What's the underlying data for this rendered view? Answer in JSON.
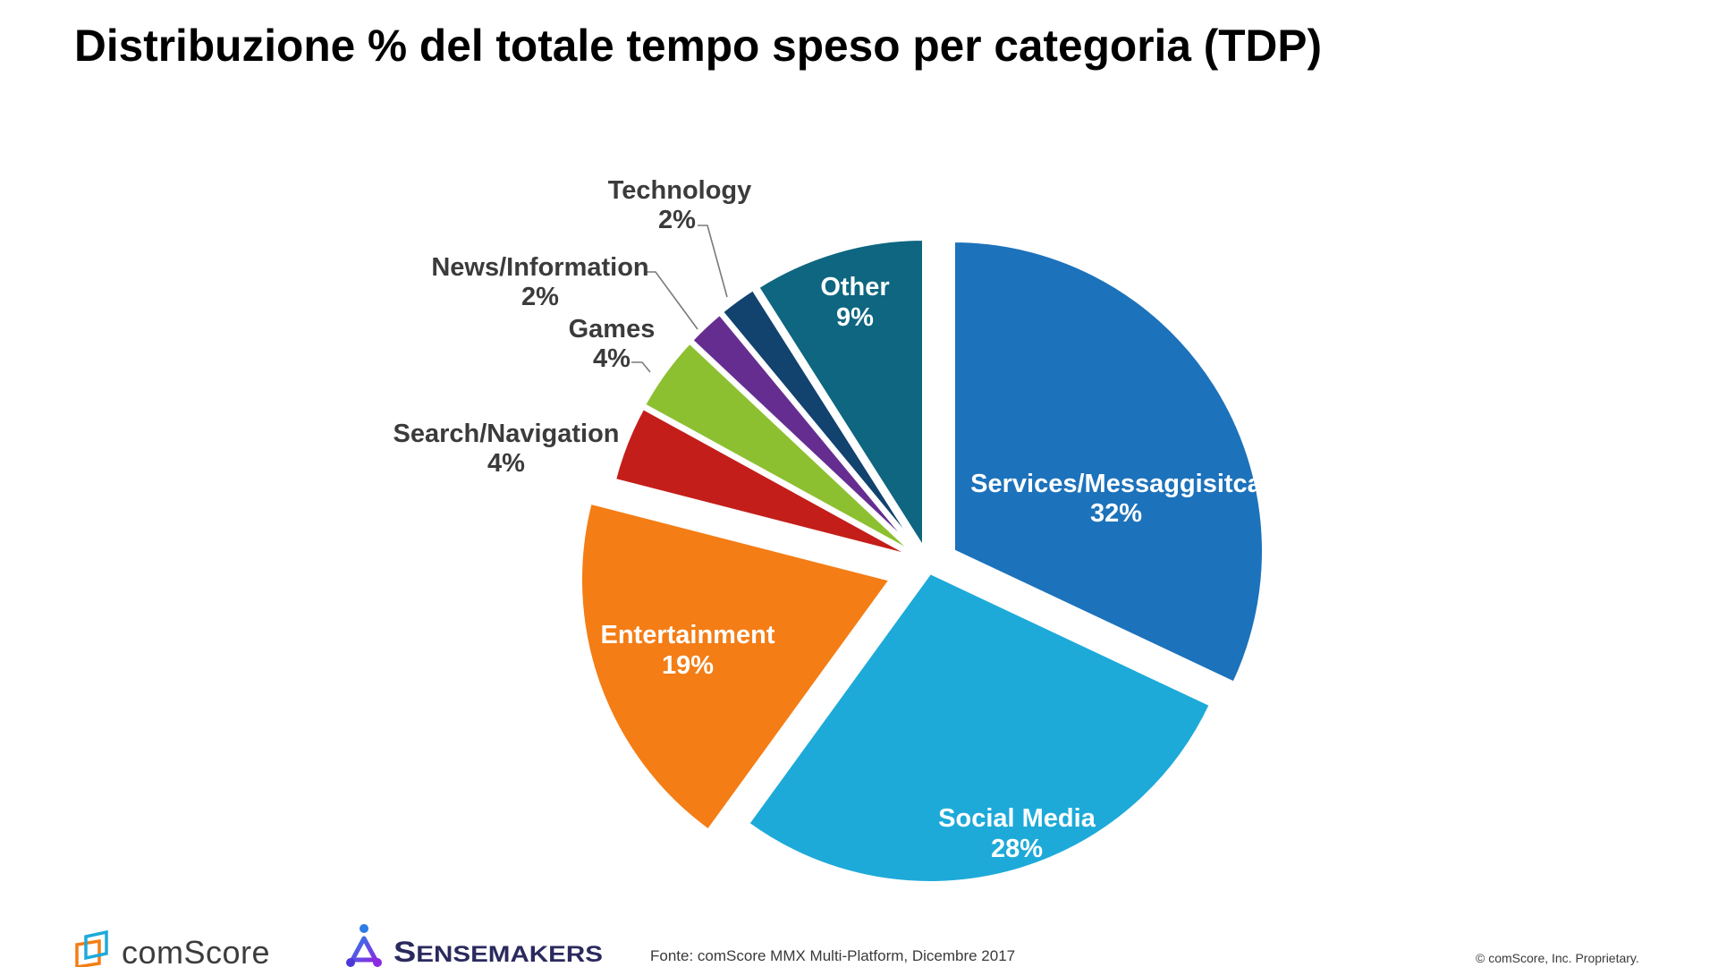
{
  "chart_data": {
    "type": "pie",
    "title": "Distribuzione % del totale tempo speso per categoria (TDP)",
    "start": "top",
    "direction": "clockwise",
    "exploded": true,
    "slices": [
      {
        "name": "Services/Messaggisitca",
        "value": 32,
        "label": "32%",
        "color": "#1C72BB",
        "label_position": "inside"
      },
      {
        "name": "Social Media",
        "value": 28,
        "label": "28%",
        "color": "#1DAAD9",
        "label_position": "inside"
      },
      {
        "name": "Entertainment",
        "value": 19,
        "label": "19%",
        "color": "#F47D15",
        "label_position": "inside"
      },
      {
        "name": "Search/Navigation",
        "value": 4,
        "label": "4%",
        "color": "#C41E1A",
        "label_position": "outside"
      },
      {
        "name": "Games",
        "value": 4,
        "label": "4%",
        "color": "#8DC031",
        "label_position": "outside"
      },
      {
        "name": "News/Information",
        "value": 2,
        "label": "2%",
        "color": "#662D91",
        "label_position": "outside"
      },
      {
        "name": "Technology",
        "value": 2,
        "label": "2%",
        "color": "#12426E",
        "label_position": "outside"
      },
      {
        "name": "Other",
        "value": 9,
        "label": "9%",
        "color": "#0E6680",
        "label_position": "inside"
      }
    ]
  },
  "footer": {
    "source": "Fonte: comScore MMX Multi-Platform,  Dicembre 2017",
    "copyright": "© comScore, Inc. Proprietary.",
    "logos": [
      {
        "name": "comScore",
        "text": "comScore"
      },
      {
        "name": "Sensemakers",
        "text": "Sensemakers"
      }
    ]
  }
}
